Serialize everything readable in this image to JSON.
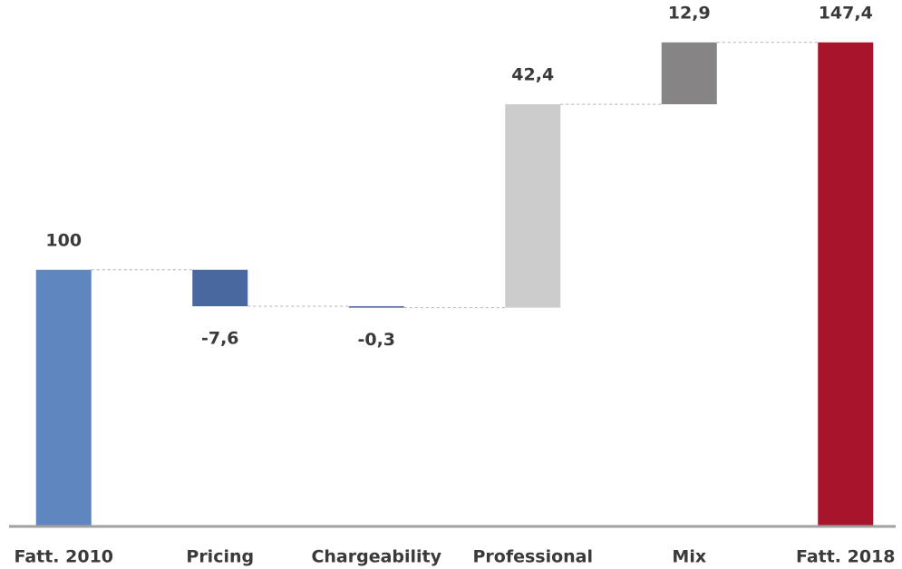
{
  "chart_data": {
    "type": "waterfall",
    "categories": [
      "Fatt. 2010",
      "Pricing",
      "Chargeability",
      "Professional",
      "Mix",
      "Fatt. 2018"
    ],
    "values": [
      100,
      -7.6,
      -0.3,
      42.4,
      12.9,
      147.4
    ],
    "value_labels": [
      "100",
      "-7,6",
      "-0,3",
      "42,4",
      "12,9",
      "147,4"
    ],
    "colors": [
      "#5f86bf",
      "#4a68a0",
      "#4a68a0",
      "#cbcccb",
      "#868484",
      "#a8152b"
    ],
    "ylim": [
      46.7,
      150
    ]
  }
}
